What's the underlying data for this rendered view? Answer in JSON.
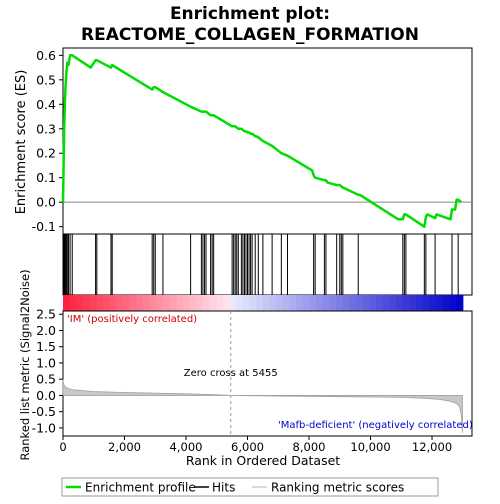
{
  "chart_data": {
    "type": "line",
    "title": "Enrichment plot:",
    "subtitle": "REACTOME_COLLAGEN_FORMATION",
    "es_panel": {
      "ylabel": "Enrichment score (ES)",
      "ylim": [
        -0.13,
        0.63
      ],
      "yticks": [
        "-0.1",
        "0.0",
        "0.1",
        "0.2",
        "0.3",
        "0.4",
        "0.5",
        "0.6"
      ],
      "ytick_values": [
        -0.1,
        0.0,
        0.1,
        0.2,
        0.3,
        0.4,
        0.5,
        0.6
      ],
      "line_color": "#00dd00",
      "series": [
        {
          "x": [
            0,
            20,
            40,
            60,
            80,
            110,
            140,
            180,
            230,
            300,
            900,
            1060,
            1100,
            1560,
            1600,
            2900,
            2950,
            3000,
            3250,
            4150,
            4500,
            4550,
            4600,
            4650,
            4800,
            4850,
            4900,
            5500,
            5550,
            5600,
            5650,
            5700,
            5800,
            5900,
            5950,
            6000,
            6050,
            6100,
            6150,
            6250,
            6350,
            6500,
            6800,
            7100,
            7300,
            8100,
            8150,
            8200,
            8500,
            8550,
            8600,
            8900,
            9000,
            9050,
            9100,
            9600,
            9650,
            10900,
            11050,
            11100,
            11150,
            11750,
            11800,
            11850,
            12100,
            12150,
            12600,
            12650,
            12700,
            12750,
            12800,
            12850,
            12950
          ],
          "y": [
            0.0,
            0.15,
            0.3,
            0.4,
            0.47,
            0.53,
            0.57,
            0.56,
            0.6,
            0.6,
            0.55,
            0.58,
            0.58,
            0.55,
            0.56,
            0.46,
            0.47,
            0.47,
            0.45,
            0.39,
            0.37,
            0.37,
            0.37,
            0.37,
            0.355,
            0.355,
            0.355,
            0.31,
            0.31,
            0.31,
            0.305,
            0.3,
            0.3,
            0.29,
            0.29,
            0.285,
            0.285,
            0.28,
            0.28,
            0.27,
            0.265,
            0.25,
            0.23,
            0.2,
            0.19,
            0.13,
            0.11,
            0.1,
            0.09,
            0.09,
            0.08,
            0.07,
            0.07,
            0.065,
            0.06,
            0.03,
            0.03,
            -0.07,
            -0.07,
            -0.05,
            -0.05,
            -0.1,
            -0.06,
            -0.05,
            -0.065,
            -0.05,
            -0.07,
            -0.03,
            -0.03,
            -0.03,
            0.01,
            0.01,
            0.0
          ]
        }
      ]
    },
    "hits": [
      20,
      40,
      60,
      80,
      110,
      140,
      180,
      230,
      300,
      1060,
      1100,
      1560,
      1600,
      2900,
      2950,
      3000,
      3250,
      4150,
      4500,
      4550,
      4600,
      4650,
      4800,
      4850,
      4900,
      5500,
      5550,
      5600,
      5650,
      5700,
      5800,
      5850,
      5900,
      5950,
      6000,
      6050,
      6100,
      6150,
      6250,
      6350,
      6500,
      6800,
      7100,
      7300,
      8150,
      8200,
      8500,
      8550,
      8900,
      9000,
      9050,
      9100,
      9600,
      11050,
      11100,
      11150,
      11750,
      11800,
      12100,
      12650,
      12850
    ],
    "ranked_panel": {
      "ylabel": "Ranked list metric (Signal2Noise)",
      "ylim": [
        -1.25,
        2.6
      ],
      "yticks": [
        "-1.0",
        "-0.5",
        "0.0",
        "0.5",
        "1.0",
        "1.5",
        "2.0",
        "2.5"
      ],
      "ytick_values": [
        -1.0,
        -0.5,
        0.0,
        0.5,
        1.0,
        1.5,
        2.0,
        2.5
      ],
      "zero_cross_label": "Zero cross at 5455",
      "zero_cross": 5455,
      "positive_label": "'IM' (positively correlated)",
      "negative_label": "'Mafb-deficient' (negatively correlated)",
      "positive_color": "#cc0000",
      "negative_color": "#0000cc",
      "metric_profile": {
        "x": [
          0,
          20,
          60,
          150,
          300,
          600,
          1000,
          2000,
          3000,
          4000,
          5000,
          5455,
          6000,
          7000,
          8000,
          9000,
          10000,
          11000,
          11800,
          12300,
          12600,
          12800,
          12900,
          12950,
          12990
        ],
        "y": [
          0.5,
          0.35,
          0.28,
          0.22,
          0.18,
          0.15,
          0.12,
          0.09,
          0.07,
          0.05,
          0.02,
          0.0,
          -0.01,
          -0.02,
          -0.03,
          -0.04,
          -0.05,
          -0.06,
          -0.09,
          -0.13,
          -0.18,
          -0.25,
          -0.35,
          -0.6,
          -1.15
        ]
      }
    },
    "xaxis": {
      "xlabel": "Rank in Ordered Dataset",
      "xlim": [
        0,
        13300
      ],
      "xticks": [
        "0",
        "2,000",
        "4,000",
        "6,000",
        "8,000",
        "10,000",
        "12,000"
      ],
      "xtick_values": [
        0,
        2000,
        4000,
        6000,
        8000,
        10000,
        12000
      ],
      "n_genes": 13000
    },
    "legend": {
      "placement": "bottom",
      "entries": [
        "Enrichment profile",
        "Hits",
        "Ranking metric scores"
      ]
    }
  }
}
